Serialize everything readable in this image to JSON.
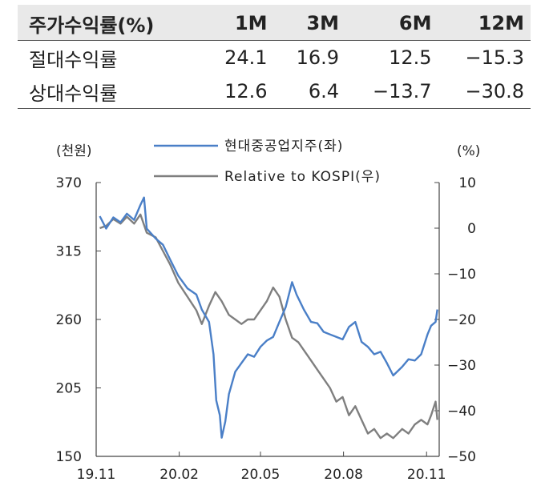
{
  "table": {
    "headers": [
      "주가수익률(%)",
      "1M",
      "3M",
      "6M",
      "12M"
    ],
    "rows": [
      {
        "label": "절대수익률",
        "values": [
          "24.1",
          "16.9",
          "12.5",
          "−15.3"
        ]
      },
      {
        "label": "상대수익률",
        "values": [
          "12.6",
          "6.4",
          "−13.7",
          "−30.8"
        ]
      }
    ]
  },
  "chart_data": {
    "type": "line",
    "left_unit": "(천원)",
    "right_unit": "(%)",
    "left_axis": {
      "range": [
        150,
        370
      ],
      "ticks": [
        "370",
        "315",
        "260",
        "205",
        "150"
      ]
    },
    "right_axis": {
      "range": [
        -50,
        10
      ],
      "ticks": [
        "10",
        "0",
        "−10",
        "−20",
        "−30",
        "−40",
        "−50"
      ]
    },
    "x_axis": {
      "ticks": [
        "19.11",
        "20.02",
        "20.05",
        "20.08",
        "20.11"
      ]
    },
    "colors": {
      "price": "#4a7fc7",
      "relative": "#7f7f7f"
    },
    "series": [
      {
        "name": "현대중공업지주(좌)",
        "axis": "left",
        "points": [
          [
            "2019-11-05",
            343
          ],
          [
            "2019-11-12",
            333
          ],
          [
            "2019-11-20",
            342
          ],
          [
            "2019-11-28",
            338
          ],
          [
            "2019-12-05",
            345
          ],
          [
            "2019-12-13",
            340
          ],
          [
            "2019-12-20",
            352
          ],
          [
            "2019-12-24",
            358
          ],
          [
            "2019-12-27",
            333
          ],
          [
            "2020-01-06",
            325
          ],
          [
            "2020-01-14",
            320
          ],
          [
            "2020-01-22",
            308
          ],
          [
            "2020-01-31",
            295
          ],
          [
            "2020-02-10",
            285
          ],
          [
            "2020-02-20",
            280
          ],
          [
            "2020-02-26",
            268
          ],
          [
            "2020-03-05",
            258
          ],
          [
            "2020-03-10",
            232
          ],
          [
            "2020-03-13",
            195
          ],
          [
            "2020-03-17",
            183
          ],
          [
            "2020-03-19",
            165
          ],
          [
            "2020-03-23",
            178
          ],
          [
            "2020-03-27",
            200
          ],
          [
            "2020-04-03",
            218
          ],
          [
            "2020-04-10",
            225
          ],
          [
            "2020-04-17",
            232
          ],
          [
            "2020-04-24",
            230
          ],
          [
            "2020-05-01",
            238
          ],
          [
            "2020-05-08",
            243
          ],
          [
            "2020-05-15",
            246
          ],
          [
            "2020-05-22",
            258
          ],
          [
            "2020-05-29",
            270
          ],
          [
            "2020-06-05",
            290
          ],
          [
            "2020-06-10",
            280
          ],
          [
            "2020-06-18",
            268
          ],
          [
            "2020-06-26",
            258
          ],
          [
            "2020-07-03",
            257
          ],
          [
            "2020-07-10",
            250
          ],
          [
            "2020-07-17",
            248
          ],
          [
            "2020-07-24",
            246
          ],
          [
            "2020-07-31",
            244
          ],
          [
            "2020-08-07",
            254
          ],
          [
            "2020-08-14",
            258
          ],
          [
            "2020-08-21",
            242
          ],
          [
            "2020-08-28",
            238
          ],
          [
            "2020-09-04",
            232
          ],
          [
            "2020-09-11",
            234
          ],
          [
            "2020-09-18",
            225
          ],
          [
            "2020-09-25",
            215
          ],
          [
            "2020-10-05",
            222
          ],
          [
            "2020-10-12",
            228
          ],
          [
            "2020-10-19",
            227
          ],
          [
            "2020-10-26",
            232
          ],
          [
            "2020-11-02",
            248
          ],
          [
            "2020-11-06",
            255
          ],
          [
            "2020-11-11",
            258
          ],
          [
            "2020-11-13",
            268
          ]
        ]
      },
      {
        "name": "Relative to KOSPI(우)",
        "axis": "right",
        "points": [
          [
            "2019-11-05",
            0
          ],
          [
            "2019-11-12",
            0.5
          ],
          [
            "2019-11-20",
            2
          ],
          [
            "2019-11-28",
            1
          ],
          [
            "2019-12-05",
            2.5
          ],
          [
            "2019-12-13",
            1
          ],
          [
            "2019-12-20",
            3
          ],
          [
            "2019-12-27",
            -1
          ],
          [
            "2020-01-06",
            -2
          ],
          [
            "2020-01-14",
            -5
          ],
          [
            "2020-01-22",
            -8
          ],
          [
            "2020-01-31",
            -12
          ],
          [
            "2020-02-10",
            -15
          ],
          [
            "2020-02-20",
            -18
          ],
          [
            "2020-02-26",
            -21
          ],
          [
            "2020-03-05",
            -17
          ],
          [
            "2020-03-12",
            -14
          ],
          [
            "2020-03-19",
            -16
          ],
          [
            "2020-03-27",
            -19
          ],
          [
            "2020-04-03",
            -20
          ],
          [
            "2020-04-10",
            -21
          ],
          [
            "2020-04-17",
            -20
          ],
          [
            "2020-04-24",
            -20
          ],
          [
            "2020-05-01",
            -18
          ],
          [
            "2020-05-08",
            -16
          ],
          [
            "2020-05-15",
            -13
          ],
          [
            "2020-05-22",
            -15
          ],
          [
            "2020-05-29",
            -20
          ],
          [
            "2020-06-05",
            -24
          ],
          [
            "2020-06-12",
            -25
          ],
          [
            "2020-06-19",
            -27
          ],
          [
            "2020-06-26",
            -29
          ],
          [
            "2020-07-03",
            -31
          ],
          [
            "2020-07-10",
            -33
          ],
          [
            "2020-07-17",
            -35
          ],
          [
            "2020-07-24",
            -38
          ],
          [
            "2020-07-31",
            -37
          ],
          [
            "2020-08-07",
            -41
          ],
          [
            "2020-08-14",
            -39
          ],
          [
            "2020-08-21",
            -42
          ],
          [
            "2020-08-28",
            -45
          ],
          [
            "2020-09-04",
            -44
          ],
          [
            "2020-09-11",
            -46
          ],
          [
            "2020-09-18",
            -45
          ],
          [
            "2020-09-25",
            -46
          ],
          [
            "2020-10-05",
            -44
          ],
          [
            "2020-10-12",
            -45
          ],
          [
            "2020-10-19",
            -43
          ],
          [
            "2020-10-26",
            -42
          ],
          [
            "2020-11-02",
            -43
          ],
          [
            "2020-11-06",
            -41
          ],
          [
            "2020-11-11",
            -38
          ],
          [
            "2020-11-13",
            -42
          ]
        ]
      }
    ]
  }
}
